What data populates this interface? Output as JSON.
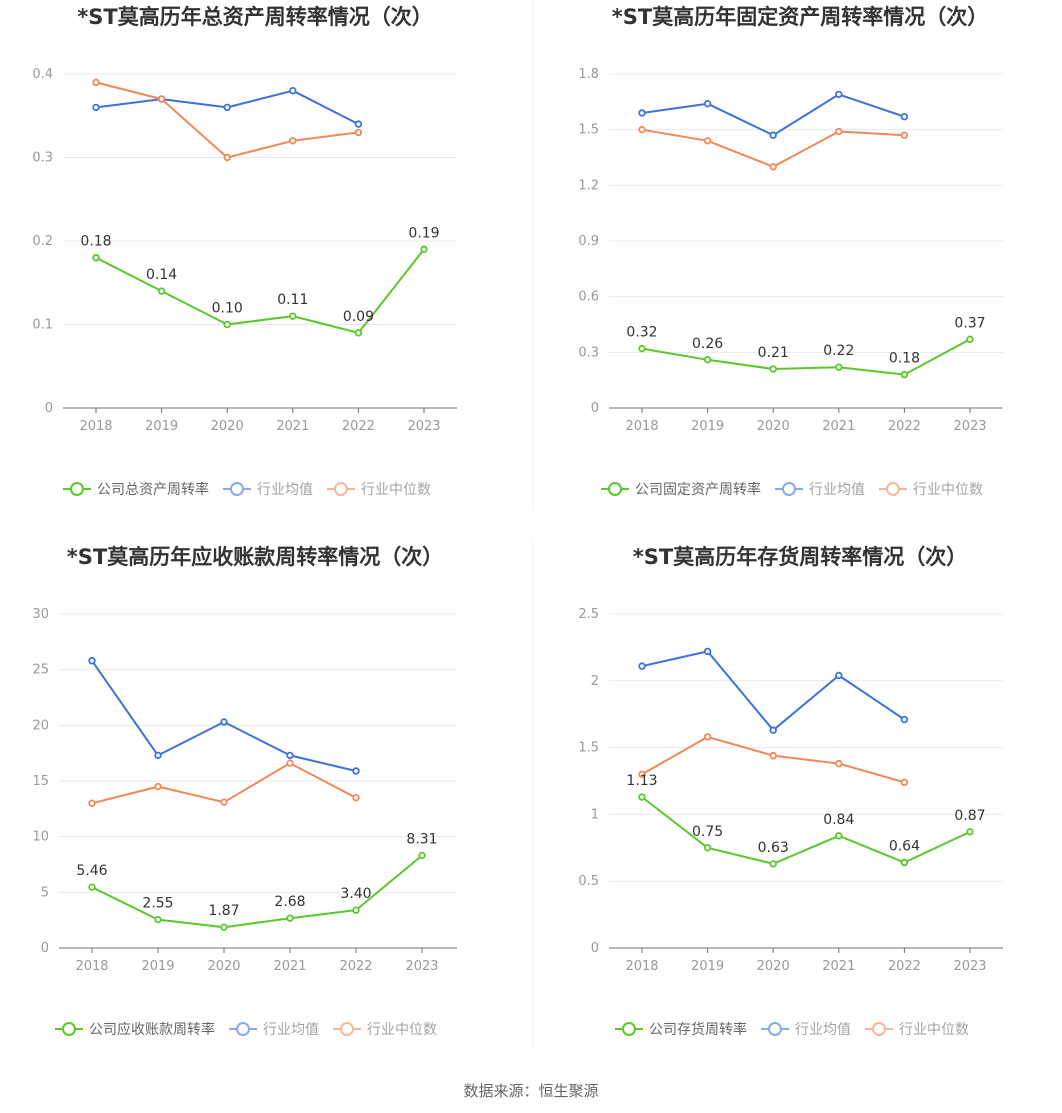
{
  "source_text": "数据来源：恒生聚源",
  "colors": {
    "company": "#5cc72c",
    "industry_avg": "#3b72db",
    "industry_median": "#f2875a"
  },
  "chart_data": [
    {
      "type": "line",
      "title": "*ST莫高历年总资产周转率情况（次）",
      "categories": [
        "2018",
        "2019",
        "2020",
        "2021",
        "2022",
        "2023"
      ],
      "yticks": [
        "0",
        "0.1",
        "0.2",
        "0.3",
        "0.4"
      ],
      "ylim": [
        0,
        0.4
      ],
      "series": [
        {
          "name": "公司总资产周转率",
          "role": "company",
          "values": [
            0.18,
            0.14,
            0.1,
            0.11,
            0.09,
            0.19
          ],
          "labels": [
            "0.18",
            "0.14",
            "0.10",
            "0.11",
            "0.09",
            "0.19"
          ]
        },
        {
          "name": "行业均值",
          "role": "industry_avg",
          "values": [
            0.36,
            0.37,
            0.36,
            0.38,
            0.34,
            null
          ]
        },
        {
          "name": "行业中位数",
          "role": "industry_median",
          "values": [
            0.39,
            0.37,
            0.3,
            0.32,
            0.33,
            null
          ]
        }
      ]
    },
    {
      "type": "line",
      "title": "*ST莫高历年固定资产周转率情况（次）",
      "categories": [
        "2018",
        "2019",
        "2020",
        "2021",
        "2022",
        "2023"
      ],
      "yticks": [
        "0",
        "0.3",
        "0.6",
        "0.9",
        "1.2",
        "1.5",
        "1.8"
      ],
      "ylim": [
        0,
        1.8
      ],
      "series": [
        {
          "name": "公司固定资产周转率",
          "role": "company",
          "values": [
            0.32,
            0.26,
            0.21,
            0.22,
            0.18,
            0.37
          ],
          "labels": [
            "0.32",
            "0.26",
            "0.21",
            "0.22",
            "0.18",
            "0.37"
          ]
        },
        {
          "name": "行业均值",
          "role": "industry_avg",
          "values": [
            1.59,
            1.64,
            1.47,
            1.69,
            1.57,
            null
          ]
        },
        {
          "name": "行业中位数",
          "role": "industry_median",
          "values": [
            1.5,
            1.44,
            1.3,
            1.49,
            1.47,
            null
          ]
        }
      ]
    },
    {
      "type": "line",
      "title": "*ST莫高历年应收账款周转率情况（次）",
      "categories": [
        "2018",
        "2019",
        "2020",
        "2021",
        "2022",
        "2023"
      ],
      "yticks": [
        "0",
        "5",
        "10",
        "15",
        "20",
        "25",
        "30"
      ],
      "ylim": [
        0,
        30
      ],
      "series": [
        {
          "name": "公司应收账款周转率",
          "role": "company",
          "values": [
            5.46,
            2.55,
            1.87,
            2.68,
            3.4,
            8.31
          ],
          "labels": [
            "5.46",
            "2.55",
            "1.87",
            "2.68",
            "3.40",
            "8.31"
          ]
        },
        {
          "name": "行业均值",
          "role": "industry_avg",
          "values": [
            25.8,
            17.3,
            20.3,
            17.3,
            15.9,
            null
          ]
        },
        {
          "name": "行业中位数",
          "role": "industry_median",
          "values": [
            13.0,
            14.5,
            13.1,
            16.6,
            13.5,
            null
          ]
        }
      ]
    },
    {
      "type": "line",
      "title": "*ST莫高历年存货周转率情况（次）",
      "categories": [
        "2018",
        "2019",
        "2020",
        "2021",
        "2022",
        "2023"
      ],
      "yticks": [
        "0",
        "0.5",
        "1",
        "1.5",
        "2",
        "2.5"
      ],
      "ylim": [
        0,
        2.5
      ],
      "series": [
        {
          "name": "公司存货周转率",
          "role": "company",
          "values": [
            1.13,
            0.75,
            0.63,
            0.84,
            0.64,
            0.87
          ],
          "labels": [
            "1.13",
            "0.75",
            "0.63",
            "0.84",
            "0.64",
            "0.87"
          ]
        },
        {
          "name": "行业均值",
          "role": "industry_avg",
          "values": [
            2.11,
            2.22,
            1.63,
            2.04,
            1.71,
            null
          ]
        },
        {
          "name": "行业中位数",
          "role": "industry_median",
          "values": [
            1.3,
            1.58,
            1.44,
            1.38,
            1.24,
            null
          ]
        }
      ]
    }
  ]
}
